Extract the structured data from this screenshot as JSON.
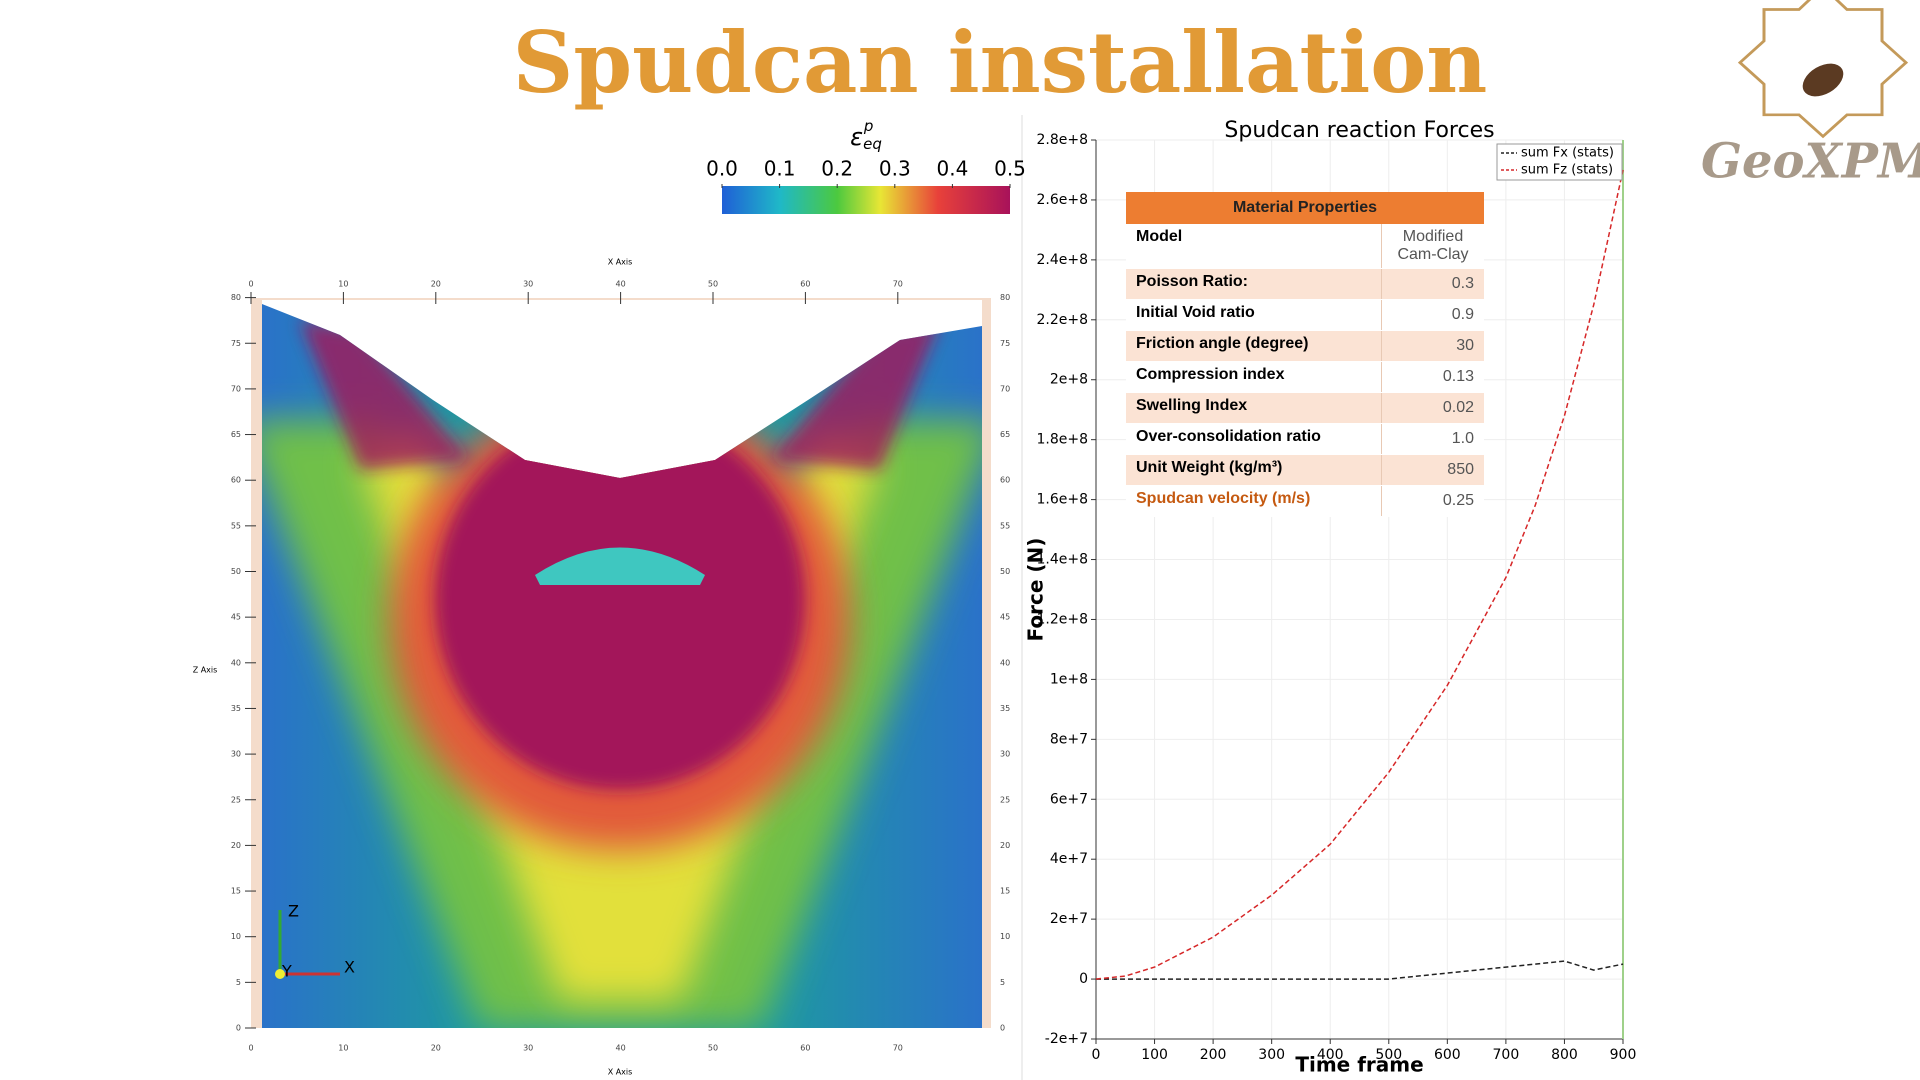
{
  "title": "Spudcan installation",
  "logo": "GeoXPM",
  "colorbar": {
    "label": "ε",
    "label_sup": "p",
    "label_sub": "eq",
    "ticks": [
      {
        "value": 0,
        "label": "0.0"
      },
      0.1,
      0.2,
      0.3,
      0.4,
      0.5
    ]
  },
  "simulation": {
    "x_label": "X Axis",
    "z_label": "Z Axis",
    "xticks": [
      0,
      10,
      20,
      30,
      40,
      50,
      60,
      70
    ],
    "zticks": [
      0,
      5,
      10,
      15,
      20,
      25,
      30,
      35,
      40,
      45,
      50,
      55,
      60,
      65,
      70,
      75,
      80
    ],
    "triad": [
      "Z",
      "Y",
      "X"
    ]
  },
  "table": {
    "title": "Material Properties",
    "rows": [
      [
        "Model",
        "Modified Cam-Clay"
      ],
      [
        "Poisson Ratio:",
        "0.3"
      ],
      [
        "Initial Void ratio",
        "0.9"
      ],
      [
        "Friction angle (degree)",
        "30"
      ],
      [
        "Compression index",
        "0.13"
      ],
      [
        "Swelling Index",
        "0.02"
      ],
      [
        "Over-consolidation ratio",
        "1.0"
      ],
      [
        "Unit Weight (kg/m³)",
        "850"
      ],
      [
        "Spudcan velocity (m/s)",
        "0.25"
      ]
    ]
  },
  "chart_data": {
    "type": "line",
    "title": "Spudcan reaction Forces",
    "x_label": "Time frame",
    "y_label": "Force (N)",
    "x": [
      0,
      50,
      100,
      200,
      300,
      400,
      500,
      600,
      700,
      750,
      800,
      850,
      900
    ],
    "series": [
      {
        "name": "sum Fx (stats)",
        "color": "#222222",
        "values": [
          0,
          0,
          0,
          0,
          0,
          0,
          0,
          2000000,
          4000000,
          5000000,
          6000000,
          3000000,
          5000000
        ]
      },
      {
        "name": "sum Fz (stats)",
        "color": "#d62728",
        "values": [
          0,
          1000000,
          4000000,
          14000000,
          28000000,
          45000000,
          69000000,
          98000000,
          134000000,
          158000000,
          188000000,
          225000000,
          270000000
        ]
      }
    ],
    "xlim": [
      0,
      900
    ],
    "xticks": [
      0,
      100,
      200,
      300,
      400,
      500,
      600,
      700,
      800,
      900
    ],
    "ylim": [
      -20000000,
      280000000
    ],
    "yticks": [
      {
        "value": -20000000,
        "label": "-2e+7"
      },
      0,
      {
        "value": 20000000,
        "label": "2e+7"
      },
      {
        "value": 40000000,
        "label": "4e+7"
      },
      {
        "value": 60000000,
        "label": "6e+7"
      },
      {
        "value": 80000000,
        "label": "8e+7"
      },
      {
        "value": 100000000,
        "label": "1e+8"
      },
      {
        "value": 120000000,
        "label": "1.2e+8"
      },
      {
        "value": 140000000,
        "label": "1.4e+8"
      },
      {
        "value": 160000000,
        "label": "1.6e+8"
      },
      {
        "value": 180000000,
        "label": "1.8e+8"
      },
      {
        "value": 200000000,
        "label": "2e+8"
      },
      {
        "value": 220000000,
        "label": "2.2e+8"
      },
      {
        "value": 240000000,
        "label": "2.4e+8"
      },
      {
        "value": 260000000,
        "label": "2.6e+8"
      },
      {
        "value": 280000000,
        "label": "2.8e+8"
      }
    ],
    "grid": true,
    "legend": "top-right"
  }
}
